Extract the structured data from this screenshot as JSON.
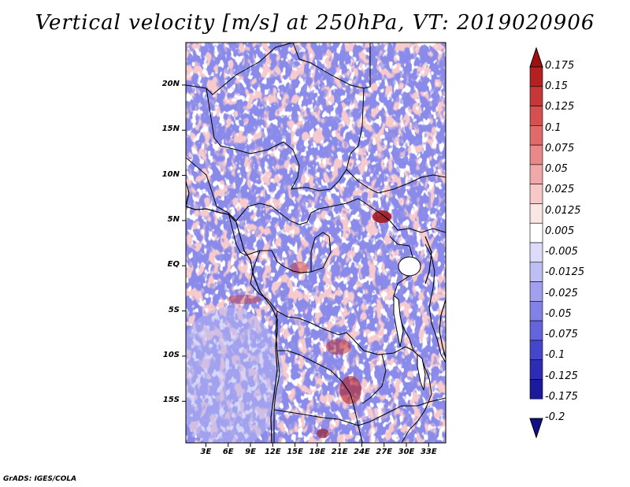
{
  "title": "Vertical velocity [m/s] at 250hPa, VT: 2019020906",
  "credit": "GrADS: IGES/COLA",
  "map": {
    "lat_labels": [
      "20N",
      "15N",
      "10N",
      "5N",
      "EQ",
      "5S",
      "10S",
      "15S"
    ],
    "lat_values": [
      20,
      15,
      10,
      5,
      0,
      -5,
      -10,
      -15
    ],
    "lon_labels": [
      "3E",
      "6E",
      "9E",
      "12E",
      "15E",
      "18E",
      "21E",
      "24E",
      "27E",
      "30E",
      "33E"
    ],
    "lon_values": [
      3,
      6,
      9,
      12,
      15,
      18,
      21,
      24,
      27,
      30,
      33
    ],
    "lat_range": [
      -19.6,
      24.7
    ],
    "lon_range": [
      0.3,
      35.3
    ]
  },
  "colorbar": {
    "labels": [
      "0.175",
      "0.15",
      "0.125",
      "0.1",
      "0.075",
      "0.05",
      "0.025",
      "0.0125",
      "0.005",
      "-0.005",
      "-0.0125",
      "-0.025",
      "-0.05",
      "-0.075",
      "-0.1",
      "-0.125",
      "-0.175",
      "-0.2"
    ],
    "colors": [
      "#a01010",
      "#b52020",
      "#c63838",
      "#d65050",
      "#e06a6a",
      "#e88888",
      "#f0a8a8",
      "#f6c8c8",
      "#fbe6e6",
      "#ffffff",
      "#dcdcfa",
      "#bebef4",
      "#a0a0ee",
      "#8282e6",
      "#6464dc",
      "#4646cc",
      "#2c2cb4",
      "#1a1a9a",
      "#10108a"
    ]
  },
  "colors": {
    "field_blue": "#7f7fe8",
    "field_red": "#ee9a9a",
    "field_light": "#c8c8f4",
    "border": "#000000"
  }
}
